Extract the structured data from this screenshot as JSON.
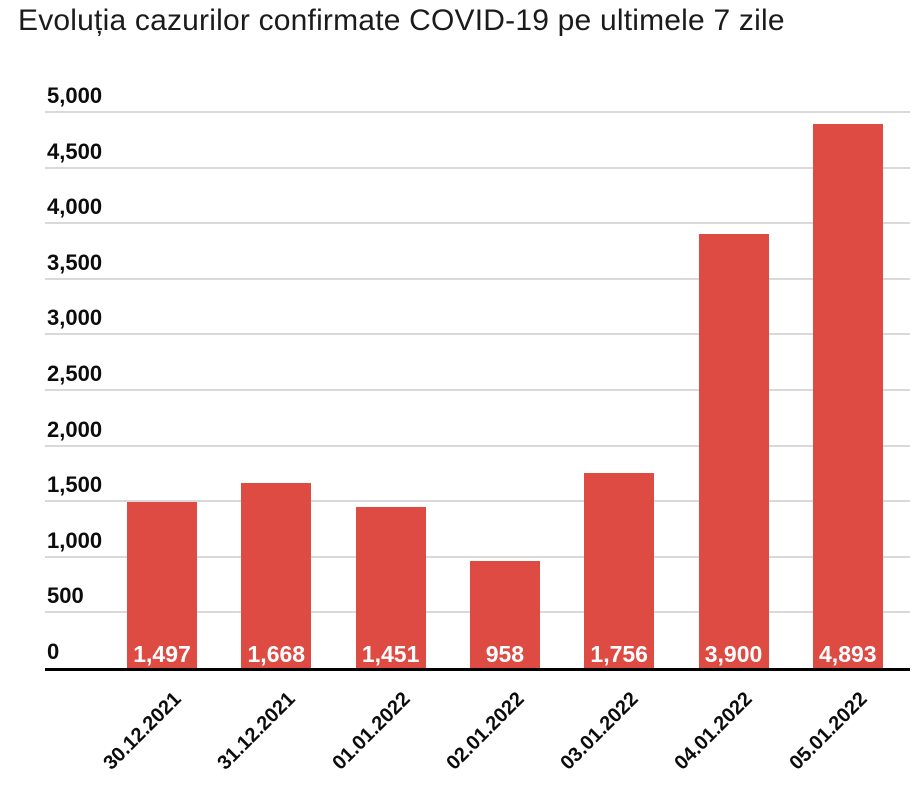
{
  "title": "Evoluția cazurilor confirmate COVID-19 pe ultimele 7 zile",
  "chart_data": {
    "type": "bar",
    "title": "Evoluția cazurilor confirmate COVID-19 pe ultimele 7 zile",
    "categories": [
      "30.12.2021",
      "31.12.2021",
      "01.01.2022",
      "02.01.2022",
      "03.01.2022",
      "04.01.2022",
      "05.01.2022"
    ],
    "values": [
      1497,
      1668,
      1451,
      958,
      1756,
      3900,
      4893
    ],
    "value_labels": [
      "1,497",
      "1,668",
      "1,451",
      "958",
      "1,756",
      "3,900",
      "4,893"
    ],
    "xlabel": "",
    "ylabel": "",
    "ylim": [
      0,
      5000
    ],
    "y_ticks": [
      0,
      500,
      1000,
      1500,
      2000,
      2500,
      3000,
      3500,
      4000,
      4500,
      5000
    ],
    "y_tick_labels": [
      "0",
      "500",
      "1,000",
      "1,500",
      "2,000",
      "2,500",
      "3,000",
      "3,500",
      "4,000",
      "4,500",
      "5,000"
    ],
    "grid": true,
    "legend": false,
    "bar_color": "#DD4B43",
    "value_label_color": "#ffffff",
    "tick_label_color": "#0c0c0c",
    "gridline_color": "#d9d9d9",
    "axis_line_color": "#000000"
  }
}
